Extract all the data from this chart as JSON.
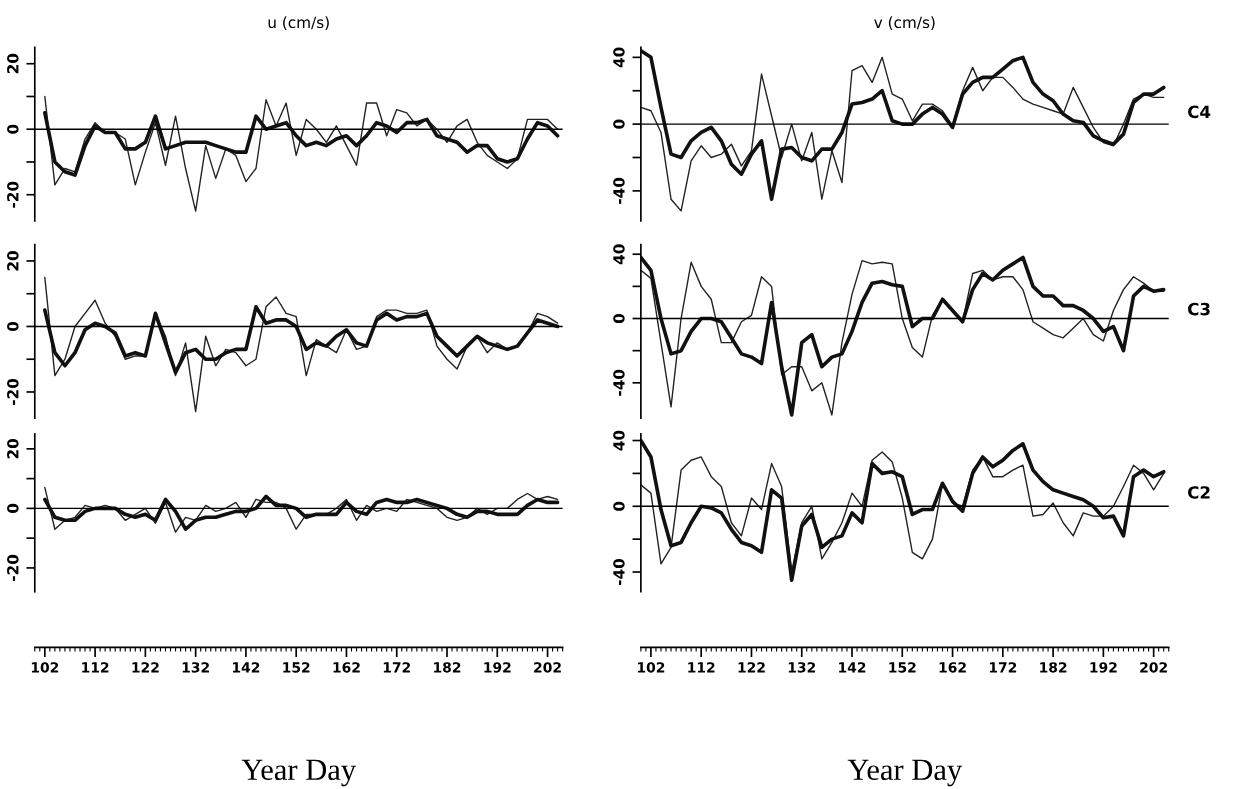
{
  "chart_data": [
    {
      "type": "line",
      "title": "u (cm/s)",
      "x": [
        102,
        104,
        106,
        108,
        110,
        112,
        114,
        116,
        118,
        120,
        122,
        124,
        126,
        128,
        130,
        132,
        134,
        136,
        138,
        140,
        142,
        144,
        146,
        148,
        150,
        152,
        154,
        156,
        158,
        160,
        162,
        164,
        166,
        168,
        170,
        172,
        174,
        176,
        178,
        180,
        182,
        184,
        186,
        188,
        190,
        192,
        194,
        196,
        198,
        200,
        202,
        204
      ],
      "xlim": [
        100,
        205
      ],
      "ylim": [
        -28,
        25
      ],
      "yticks": [
        -20,
        {
          "value": -10,
          "label": null
        },
        0,
        {
          "value": 10,
          "label": null
        },
        20
      ],
      "tick_labels": "y",
      "ref_lines": [
        {
          "axis": "y",
          "value": 0,
          "color": "#000000"
        }
      ],
      "series": [
        {
          "color": "#222222",
          "values": [
            10,
            -17,
            -12,
            -13,
            -3,
            2,
            -1,
            -1,
            -3,
            -17,
            -7,
            2,
            -11,
            4,
            -12,
            -25,
            -5,
            -15,
            -6,
            -8,
            -16,
            -12,
            9,
            1,
            8,
            -8,
            3,
            0,
            -4,
            1,
            -5,
            -11,
            8,
            8,
            -2,
            6,
            5,
            1,
            3,
            0,
            -4,
            1,
            3,
            -4,
            -8,
            -10,
            -12,
            -9,
            3,
            3,
            3,
            0
          ]
        },
        {
          "color": "#111111",
          "values": [
            5,
            -10,
            -13,
            -14,
            -5,
            1,
            -1,
            -1,
            -6,
            -6,
            -4,
            4,
            -6,
            -5,
            -4,
            -4,
            -4,
            -5,
            -6,
            -7,
            -7,
            4,
            0,
            1,
            2,
            -2,
            -5,
            -4,
            -5,
            -3,
            -2,
            -5,
            -2,
            2,
            1,
            -1,
            2,
            2,
            3,
            -2,
            -3,
            -4,
            -7,
            -5,
            -5,
            -9,
            -10,
            -9,
            -3,
            2,
            1,
            -2
          ]
        }
      ]
    },
    {
      "type": "line",
      "title": "v (cm/s)",
      "x": [
        100,
        102,
        104,
        106,
        108,
        110,
        112,
        114,
        116,
        118,
        120,
        122,
        124,
        126,
        128,
        130,
        132,
        134,
        136,
        138,
        140,
        142,
        144,
        146,
        148,
        150,
        152,
        154,
        156,
        158,
        160,
        162,
        164,
        166,
        168,
        170,
        172,
        174,
        176,
        178,
        180,
        182,
        184,
        186,
        188,
        190,
        192,
        194,
        196,
        198,
        200,
        202,
        204
      ],
      "xlim": [
        100,
        205
      ],
      "ylim": [
        -58,
        46
      ],
      "yticks": [
        -40,
        {
          "value": -20,
          "label": null
        },
        0,
        {
          "value": 20,
          "label": null
        },
        40
      ],
      "tick_labels": "y",
      "ref_lines": [
        {
          "axis": "y",
          "value": 0,
          "color": "#000000"
        }
      ],
      "annotations": [
        "C4"
      ],
      "series": [
        {
          "color": "#222222",
          "values": [
            10,
            8,
            -5,
            -45,
            -52,
            -22,
            -13,
            -20,
            -18,
            -12,
            -25,
            -16,
            30,
            5,
            -20,
            0,
            -22,
            -5,
            -45,
            -16,
            -35,
            32,
            35,
            25,
            40,
            18,
            15,
            2,
            12,
            12,
            8,
            -1,
            20,
            34,
            20,
            28,
            28,
            22,
            15,
            12,
            10,
            8,
            6,
            22,
            10,
            -2,
            -11,
            -13,
            0,
            15,
            18,
            16,
            16
          ]
        },
        {
          "color": "#111111",
          "values": [
            44,
            40,
            10,
            -18,
            -20,
            -10,
            -5,
            -2,
            -10,
            -24,
            -30,
            -18,
            -10,
            -45,
            -15,
            -14,
            -20,
            -22,
            -15,
            -15,
            -5,
            12,
            13,
            15,
            20,
            2,
            0,
            0,
            6,
            10,
            6,
            -2,
            18,
            25,
            28,
            28,
            33,
            38,
            40,
            25,
            18,
            14,
            6,
            2,
            1,
            -7,
            -10,
            -12,
            -6,
            13,
            18,
            18,
            22
          ]
        }
      ]
    },
    {
      "type": "line",
      "x": [
        102,
        104,
        106,
        108,
        110,
        112,
        114,
        116,
        118,
        120,
        122,
        124,
        126,
        128,
        130,
        132,
        134,
        136,
        138,
        140,
        142,
        144,
        146,
        148,
        150,
        152,
        154,
        156,
        158,
        160,
        162,
        164,
        166,
        168,
        170,
        172,
        174,
        176,
        178,
        180,
        182,
        184,
        186,
        188,
        190,
        192,
        194,
        196,
        198,
        200,
        202,
        204
      ],
      "xlim": [
        100,
        205
      ],
      "ylim": [
        -28,
        25
      ],
      "yticks": [
        -20,
        {
          "value": -10,
          "label": null
        },
        0,
        {
          "value": 10,
          "label": null
        },
        20
      ],
      "tick_labels": "y",
      "ref_lines": [
        {
          "axis": "y",
          "value": 0,
          "color": "#000000"
        }
      ],
      "series": [
        {
          "color": "#222222",
          "values": [
            15,
            -15,
            -10,
            0,
            4,
            8,
            1,
            -3,
            -10,
            -9,
            -9,
            4,
            -3,
            -15,
            -5,
            -26,
            -3,
            -12,
            -7,
            -8,
            -12,
            -10,
            6,
            9,
            4,
            3,
            -15,
            -4,
            -6,
            -8,
            -1,
            -7,
            -6,
            3,
            5,
            5,
            4,
            4,
            5,
            -6,
            -10,
            -13,
            -6,
            -3,
            -8,
            -5,
            -7,
            -6,
            -2,
            4,
            3,
            1
          ]
        },
        {
          "color": "#111111",
          "values": [
            5,
            -8,
            -12,
            -8,
            -1,
            1,
            0,
            -2,
            -9,
            -8,
            -9,
            4,
            -5,
            -14,
            -8,
            -7,
            -10,
            -10,
            -8,
            -7,
            -7,
            6,
            1,
            2,
            2,
            0,
            -7,
            -5,
            -6,
            -3,
            -1,
            -5,
            -6,
            2,
            4,
            2,
            3,
            3,
            4,
            -3,
            -6,
            -9,
            -6,
            -3,
            -5,
            -6,
            -7,
            -6,
            -2,
            2,
            1,
            0
          ]
        }
      ]
    },
    {
      "type": "line",
      "x": [
        100,
        102,
        104,
        106,
        108,
        110,
        112,
        114,
        116,
        118,
        120,
        122,
        124,
        126,
        128,
        130,
        132,
        134,
        136,
        138,
        140,
        142,
        144,
        146,
        148,
        150,
        152,
        154,
        156,
        158,
        160,
        162,
        164,
        166,
        168,
        170,
        172,
        174,
        176,
        178,
        180,
        182,
        184,
        186,
        188,
        190,
        192,
        194,
        196,
        198,
        200,
        202,
        204
      ],
      "xlim": [
        100,
        205
      ],
      "ylim": [
        -62,
        46
      ],
      "yticks": [
        -40,
        {
          "value": -20,
          "label": null
        },
        0,
        {
          "value": 20,
          "label": null
        },
        40
      ],
      "tick_labels": "y",
      "ref_lines": [
        {
          "axis": "y",
          "value": 0,
          "color": "#000000"
        }
      ],
      "annotations": [
        "C3"
      ],
      "series": [
        {
          "color": "#222222",
          "values": [
            30,
            25,
            -15,
            -55,
            0,
            35,
            20,
            12,
            -15,
            -15,
            -2,
            2,
            26,
            20,
            -35,
            -30,
            -30,
            -45,
            -40,
            -60,
            -15,
            15,
            36,
            34,
            35,
            34,
            0,
            -18,
            -24,
            2,
            12,
            5,
            -2,
            28,
            30,
            24,
            26,
            26,
            18,
            -2,
            -6,
            -10,
            -12,
            -6,
            0,
            -10,
            -14,
            5,
            18,
            26,
            22,
            17,
            17
          ]
        },
        {
          "color": "#111111",
          "values": [
            38,
            30,
            0,
            -22,
            -20,
            -8,
            0,
            0,
            -2,
            -12,
            -22,
            -24,
            -28,
            10,
            -30,
            -60,
            -15,
            -10,
            -30,
            -24,
            -22,
            -8,
            10,
            22,
            23,
            21,
            20,
            -5,
            0,
            0,
            12,
            5,
            -2,
            18,
            28,
            24,
            30,
            34,
            38,
            20,
            14,
            14,
            8,
            8,
            5,
            0,
            -8,
            -5,
            -20,
            14,
            20,
            17,
            18
          ]
        }
      ]
    },
    {
      "type": "line",
      "x": [
        102,
        104,
        106,
        108,
        110,
        112,
        114,
        116,
        118,
        120,
        122,
        124,
        126,
        128,
        130,
        132,
        134,
        136,
        138,
        140,
        142,
        144,
        146,
        148,
        150,
        152,
        154,
        156,
        158,
        160,
        162,
        164,
        166,
        168,
        170,
        172,
        174,
        176,
        178,
        180,
        182,
        184,
        186,
        188,
        190,
        192,
        194,
        196,
        198,
        200,
        202,
        204
      ],
      "xlim": [
        100,
        205
      ],
      "ylim": [
        -28,
        25
      ],
      "yticks": [
        -20,
        {
          "value": -10,
          "label": null
        },
        0,
        {
          "value": 10,
          "label": null
        },
        20
      ],
      "xticks": [
        102,
        112,
        122,
        132,
        142,
        152,
        162,
        172,
        182,
        192,
        202
      ],
      "xlabel": "Year Day",
      "ref_lines": [
        {
          "axis": "y",
          "value": 0,
          "color": "#000000"
        }
      ],
      "series": [
        {
          "color": "#222222",
          "values": [
            7,
            -7,
            -4,
            -3,
            1,
            0,
            1,
            0,
            -4,
            -2,
            0,
            -5,
            2,
            -8,
            -3,
            -4,
            1,
            -1,
            0,
            2,
            -3,
            3,
            2,
            2,
            0,
            -7,
            -2,
            -2,
            -2,
            0,
            3,
            -4,
            1,
            -1,
            0,
            -1,
            3,
            2,
            1,
            0,
            -3,
            -4,
            -3,
            0,
            -2,
            0,
            0,
            3,
            5,
            3,
            4,
            3
          ]
        },
        {
          "color": "#111111",
          "values": [
            3,
            -3,
            -4,
            -4,
            -1,
            0,
            0,
            0,
            -2,
            -3,
            -2,
            -4,
            3,
            -1,
            -7,
            -4,
            -3,
            -3,
            -2,
            -1,
            -1,
            0,
            4,
            1,
            1,
            0,
            -3,
            -2,
            -2,
            -2,
            2,
            -1,
            -2,
            2,
            3,
            2,
            2,
            3,
            2,
            1,
            0,
            -2,
            -3,
            -1,
            -1,
            -2,
            -2,
            -2,
            1,
            3,
            2,
            2
          ]
        }
      ]
    },
    {
      "type": "line",
      "x": [
        100,
        102,
        104,
        106,
        108,
        110,
        112,
        114,
        116,
        118,
        120,
        122,
        124,
        126,
        128,
        130,
        132,
        134,
        136,
        138,
        140,
        142,
        144,
        146,
        148,
        150,
        152,
        154,
        156,
        158,
        160,
        162,
        164,
        166,
        168,
        170,
        172,
        174,
        176,
        178,
        180,
        182,
        184,
        186,
        188,
        190,
        192,
        194,
        196,
        198,
        200,
        202,
        204
      ],
      "xlim": [
        100,
        205
      ],
      "ylim": [
        -52,
        44
      ],
      "yticks": [
        -40,
        {
          "value": -20,
          "label": null
        },
        0,
        {
          "value": 20,
          "label": null
        },
        40
      ],
      "xticks": [
        102,
        112,
        122,
        132,
        142,
        152,
        162,
        172,
        182,
        192,
        202
      ],
      "xlabel": "Year Day",
      "ref_lines": [
        {
          "axis": "y",
          "value": 0,
          "color": "#000000"
        }
      ],
      "annotations": [
        "C2"
      ],
      "series": [
        {
          "color": "#222222",
          "values": [
            13,
            8,
            -35,
            -25,
            22,
            28,
            30,
            18,
            12,
            -10,
            -18,
            5,
            -2,
            26,
            12,
            -40,
            -10,
            0,
            -32,
            -22,
            -10,
            8,
            0,
            28,
            33,
            27,
            5,
            -28,
            -32,
            -20,
            14,
            2,
            0,
            22,
            30,
            18,
            18,
            22,
            25,
            -6,
            -5,
            2,
            -10,
            -18,
            -4,
            -6,
            -6,
            0,
            12,
            25,
            20,
            10,
            20
          ]
        },
        {
          "color": "#111111",
          "values": [
            40,
            30,
            -2,
            -24,
            -22,
            -10,
            0,
            -1,
            -4,
            -14,
            -22,
            -24,
            -28,
            10,
            5,
            -45,
            -12,
            -5,
            -25,
            -20,
            -18,
            -4,
            -10,
            26,
            20,
            21,
            18,
            -5,
            -2,
            -2,
            14,
            3,
            -3,
            20,
            30,
            24,
            28,
            34,
            38,
            22,
            15,
            10,
            8,
            6,
            4,
            0,
            -7,
            -6,
            -18,
            18,
            22,
            18,
            21
          ]
        }
      ]
    }
  ]
}
